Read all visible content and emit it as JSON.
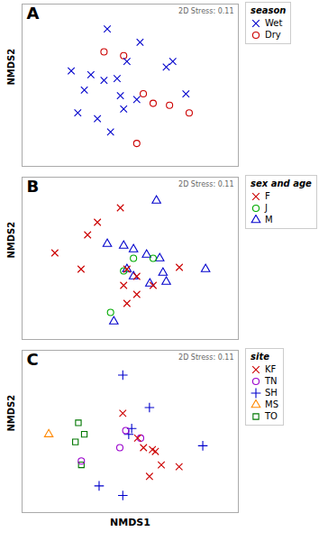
{
  "chart_data": [
    {
      "type": "scatter",
      "annotations": [
        "A",
        "2D Stress: 0.11"
      ],
      "legend_title": "season",
      "ylabel": "NMDS2",
      "xlim": [
        0.12,
        0.78
      ],
      "ylim": [
        0.1,
        0.95
      ],
      "tick_labels": false,
      "grid": false,
      "legend": "right",
      "series": [
        {
          "name": "Wet",
          "color": "#0000cc",
          "marker": "times",
          "x": [
            0.38,
            0.48,
            0.58,
            0.27,
            0.33,
            0.37,
            0.31,
            0.42,
            0.47,
            0.56,
            0.62,
            0.43,
            0.35,
            0.39,
            0.44,
            0.29,
            0.41
          ],
          "y": [
            0.82,
            0.75,
            0.65,
            0.6,
            0.58,
            0.55,
            0.5,
            0.47,
            0.45,
            0.62,
            0.48,
            0.4,
            0.35,
            0.28,
            0.65,
            0.38,
            0.56
          ]
        },
        {
          "name": "Dry",
          "color": "#cc0000",
          "marker": "circle",
          "x": [
            0.37,
            0.49,
            0.52,
            0.57,
            0.63,
            0.47,
            0.43
          ],
          "y": [
            0.7,
            0.48,
            0.43,
            0.42,
            0.38,
            0.22,
            0.68
          ]
        }
      ]
    },
    {
      "type": "scatter",
      "annotations": [
        "B",
        "2D Stress: 0.11"
      ],
      "legend_title": "sex and age",
      "ylabel": "NMDS2",
      "xlim": [
        0.12,
        0.78
      ],
      "ylim": [
        0.05,
        0.95
      ],
      "tick_labels": false,
      "grid": false,
      "legend": "right",
      "series": [
        {
          "name": "F",
          "color": "#cc0000",
          "marker": "times",
          "x": [
            0.42,
            0.35,
            0.32,
            0.22,
            0.3,
            0.44,
            0.47,
            0.43,
            0.52,
            0.6,
            0.47,
            0.44
          ],
          "y": [
            0.78,
            0.7,
            0.63,
            0.53,
            0.44,
            0.44,
            0.4,
            0.35,
            0.35,
            0.45,
            0.3,
            0.25
          ]
        },
        {
          "name": "J",
          "color": "#00aa00",
          "marker": "circle",
          "x": [
            0.43,
            0.46,
            0.52,
            0.39
          ],
          "y": [
            0.43,
            0.5,
            0.5,
            0.2
          ]
        },
        {
          "name": "M",
          "color": "#0000cc",
          "marker": "triangle",
          "x": [
            0.53,
            0.38,
            0.43,
            0.46,
            0.5,
            0.54,
            0.44,
            0.46,
            0.51,
            0.68,
            0.56,
            0.55,
            0.4
          ],
          "y": [
            0.82,
            0.58,
            0.57,
            0.55,
            0.52,
            0.5,
            0.44,
            0.4,
            0.36,
            0.44,
            0.37,
            0.42,
            0.15
          ]
        }
      ]
    },
    {
      "type": "scatter",
      "annotations": [
        "C",
        "2D Stress: 0.11"
      ],
      "legend_title": "site",
      "ylabel": "NMDS2",
      "xlabel": "NMDS1",
      "xlim": [
        0.1,
        0.83
      ],
      "ylim": [
        0.03,
        0.88
      ],
      "tick_labels": false,
      "grid": false,
      "legend": "right",
      "series": [
        {
          "name": "KF",
          "color": "#cc0000",
          "marker": "times",
          "x": [
            0.44,
            0.49,
            0.51,
            0.54,
            0.55,
            0.57,
            0.63,
            0.53
          ],
          "y": [
            0.55,
            0.42,
            0.37,
            0.36,
            0.35,
            0.28,
            0.27,
            0.22
          ]
        },
        {
          "name": "TN",
          "color": "#9900cc",
          "marker": "circle",
          "x": [
            0.3,
            0.45,
            0.5,
            0.43
          ],
          "y": [
            0.3,
            0.46,
            0.42,
            0.37
          ]
        },
        {
          "name": "SH",
          "color": "#0000cc",
          "marker": "plus",
          "x": [
            0.44,
            0.53,
            0.47,
            0.46,
            0.71,
            0.36,
            0.44
          ],
          "y": [
            0.75,
            0.58,
            0.47,
            0.44,
            0.38,
            0.17,
            0.12
          ]
        },
        {
          "name": "MS",
          "color": "#ff8800",
          "marker": "triangle",
          "x": [
            0.19
          ],
          "y": [
            0.44
          ]
        },
        {
          "name": "TO",
          "color": "#007700",
          "marker": "square",
          "x": [
            0.29,
            0.31,
            0.28,
            0.3
          ],
          "y": [
            0.5,
            0.44,
            0.4,
            0.28
          ]
        }
      ]
    }
  ]
}
